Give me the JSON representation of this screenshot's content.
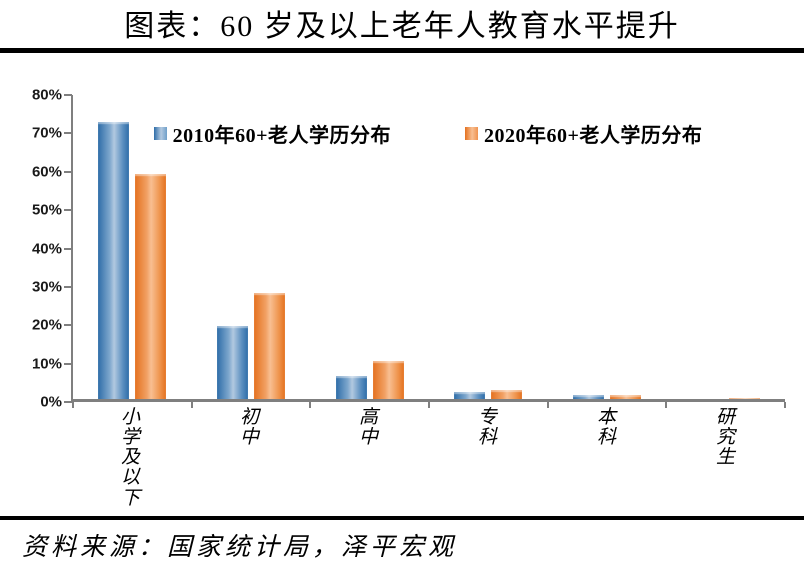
{
  "title": "图表：60 岁及以上老年人教育水平提升",
  "source": "资料来源：国家统计局，泽平宏观",
  "colors": {
    "blue_dark": "#2e6da8",
    "blue_mid": "#6f9fc9",
    "blue_light": "#b2c9e0",
    "orange_dark": "#e4711f",
    "orange_mid": "#ef9350",
    "orange_light": "#f8bf92",
    "axis_gray": "#7f7f7f"
  },
  "chart_data": {
    "type": "bar",
    "categories": [
      "小学及以下",
      "初中",
      "高中",
      "专科",
      "本科",
      "研究生"
    ],
    "series": [
      {
        "name": "2010年60+老人学历分布",
        "values": [
          72.1,
          18.9,
          6.0,
          1.9,
          1.0,
          0.1
        ]
      },
      {
        "name": "2020年60+老人学历分布",
        "values": [
          58.6,
          27.6,
          9.9,
          2.4,
          1.1,
          0.2
        ]
      }
    ],
    "ylim": [
      0,
      80
    ],
    "ytick_step": 10,
    "ytick_labels": [
      "0%",
      "10%",
      "20%",
      "30%",
      "40%",
      "50%",
      "60%",
      "70%",
      "80%"
    ],
    "legend_position": "top",
    "grid": false,
    "ylabel": "",
    "xlabel": ""
  }
}
